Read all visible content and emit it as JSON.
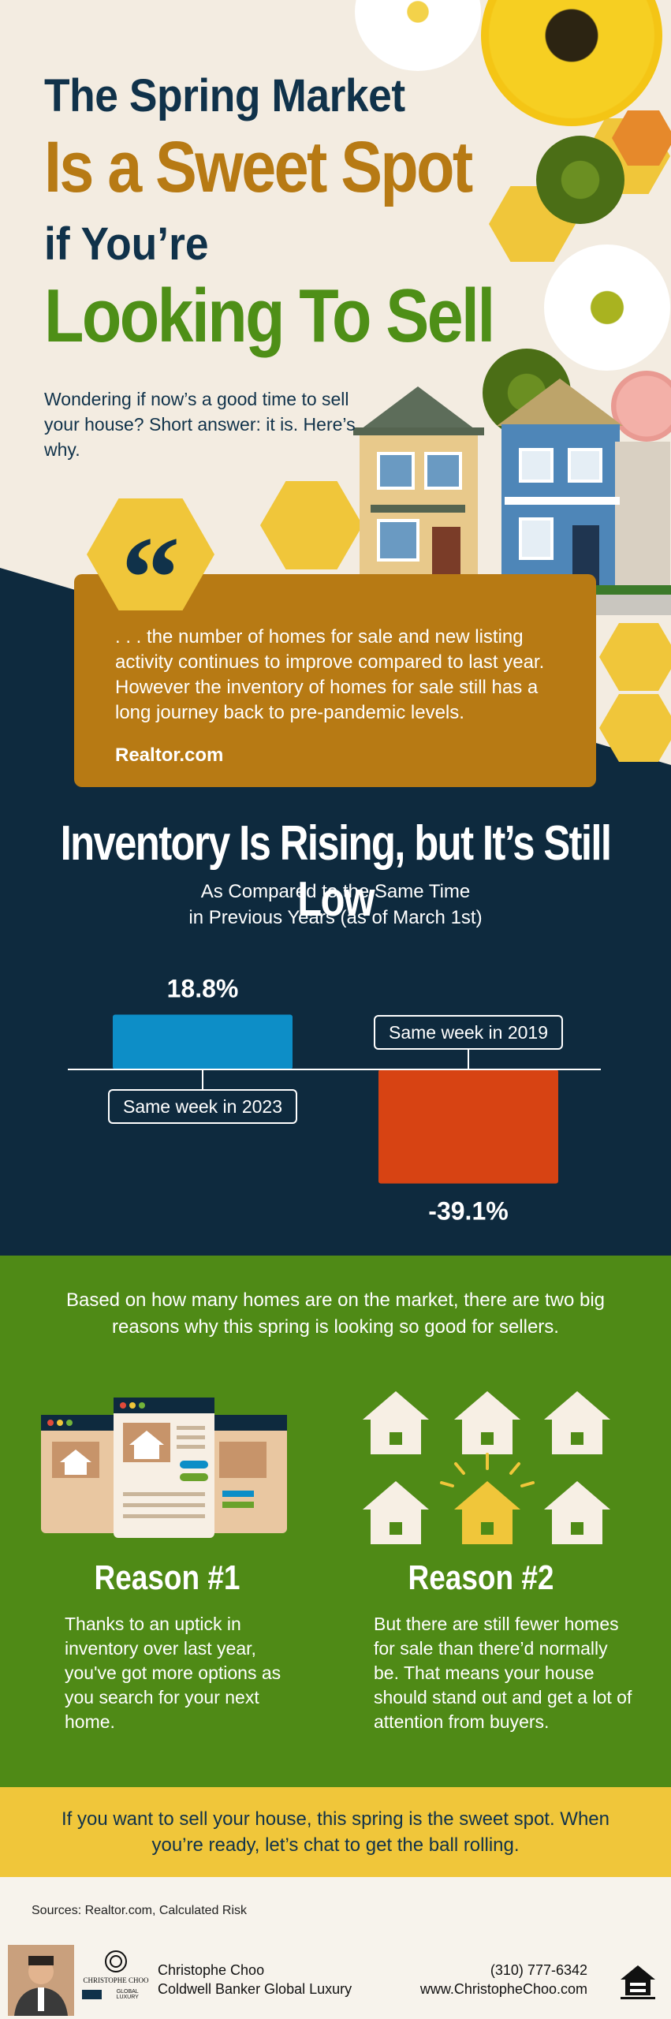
{
  "hero": {
    "title_line1": "The Spring Market",
    "title_line2": "Is a Sweet Spot",
    "title_line3": "if You’re",
    "title_line4": "Looking To Sell",
    "intro": "Wondering if now’s a good time to sell your house? Short answer: it is. Here’s why."
  },
  "quote": {
    "mark": "“",
    "text": ". . . the number of homes for sale and new listing activity continues to improve compared to last year. However the inventory of homes for sale still has a long journey back to pre-pandemic levels.",
    "source": "Realtor.com"
  },
  "inventory": {
    "title": "Inventory Is Rising, but It’s Still Low",
    "subtitle_line1": "As Compared to the Same Time",
    "subtitle_line2": "in Previous Years (as of March 1st)"
  },
  "chart_data": {
    "type": "bar",
    "categories": [
      "Same week in 2023",
      "Same week in 2019"
    ],
    "values": [
      18.8,
      -39.1
    ],
    "value_labels": [
      "18.8%",
      "-39.1%"
    ],
    "colors": [
      "#0d8ec7",
      "#d74313"
    ],
    "title": "Inventory Is Rising, but It’s Still Low",
    "subtitle": "As Compared to the Same Time in Previous Years (as of March 1st)",
    "xlabel": "",
    "ylabel": "",
    "grid": false
  },
  "reasons": {
    "intro": "Based on how many homes are on the market, there are two big reasons why this spring is looking so good for sellers.",
    "items": [
      {
        "title": "Reason #1",
        "text": "Thanks to an uptick in inventory over last year, you've got more options as you search for your next home.",
        "icon": "listings-browser-icon"
      },
      {
        "title": "Reason #2",
        "text": "But there are still fewer homes for sale than there’d normally be. That means your house should stand out and get a lot of attention from buyers.",
        "icon": "standout-house-icon"
      }
    ]
  },
  "cta": {
    "text": "If you want to sell your house, this spring is the sweet spot. When you’re ready, let’s chat to get the ball rolling."
  },
  "footer": {
    "sources": "Sources: Realtor.com, Calculated Risk",
    "agent_name": "Christophe Choo",
    "brokerage": "Coldwell Banker Global Luxury",
    "phone": "(310) 777-6342",
    "website": "www.ChristopheChoo.com",
    "logo_name": "CHRISTOPHE CHOO",
    "logo_sub": "GLOBAL LUXURY"
  },
  "colors": {
    "navy": "#0e2a3e",
    "gold": "#b77a14",
    "green": "#4f8a16",
    "yellow": "#f0c63a",
    "blue_bar": "#0d8ec7",
    "red_bar": "#d74313"
  }
}
